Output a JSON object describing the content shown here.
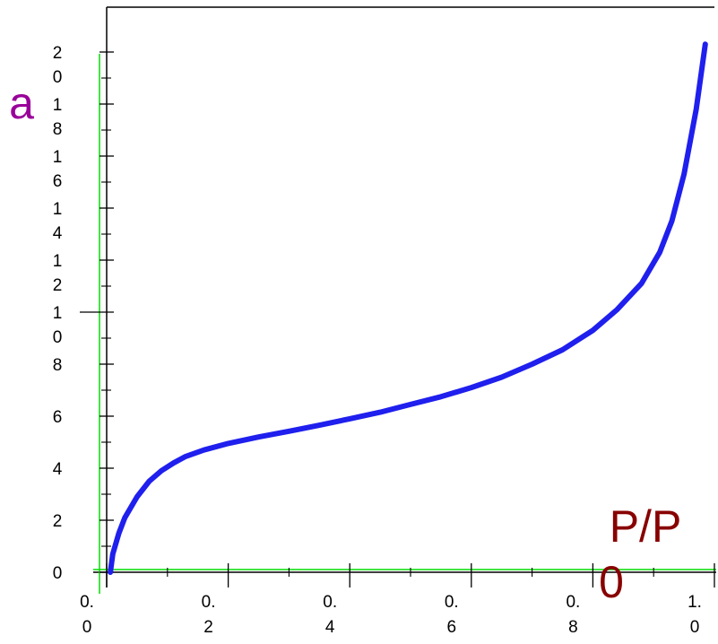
{
  "chart_data": {
    "type": "line",
    "title": "",
    "xlabel_lines": [
      "P/P",
      "0"
    ],
    "ylabel": "a",
    "xlim": [
      0,
      1.0
    ],
    "ylim": [
      0,
      20
    ],
    "x_ticks": [
      {
        "value": 0.0,
        "lines": [
          "0.",
          "0"
        ]
      },
      {
        "value": 0.2,
        "lines": [
          "0.",
          "2"
        ]
      },
      {
        "value": 0.4,
        "lines": [
          "0.",
          "4"
        ]
      },
      {
        "value": 0.6,
        "lines": [
          "0.",
          "6"
        ]
      },
      {
        "value": 0.8,
        "lines": [
          "0.",
          "8"
        ]
      },
      {
        "value": 1.0,
        "lines": [
          "1.",
          "0"
        ]
      }
    ],
    "y_ticks": [
      {
        "value": 0,
        "lines": [
          "0"
        ]
      },
      {
        "value": 2,
        "lines": [
          "2"
        ]
      },
      {
        "value": 4,
        "lines": [
          "4"
        ]
      },
      {
        "value": 6,
        "lines": [
          "6"
        ]
      },
      {
        "value": 8,
        "lines": [
          "8"
        ]
      },
      {
        "value": 10,
        "lines": [
          "1",
          "0"
        ]
      },
      {
        "value": 12,
        "lines": [
          "1",
          "2"
        ]
      },
      {
        "value": 14,
        "lines": [
          "1",
          "4"
        ]
      },
      {
        "value": 16,
        "lines": [
          "1",
          "6"
        ]
      },
      {
        "value": 18,
        "lines": [
          "1",
          "8"
        ]
      },
      {
        "value": 20,
        "lines": [
          "2",
          "0"
        ]
      }
    ],
    "series": [
      {
        "color": "#1f1fee",
        "points": [
          [
            0.006,
            0.0
          ],
          [
            0.01,
            0.7
          ],
          [
            0.02,
            1.5
          ],
          [
            0.03,
            2.1
          ],
          [
            0.05,
            2.9
          ],
          [
            0.07,
            3.5
          ],
          [
            0.09,
            3.9
          ],
          [
            0.11,
            4.2
          ],
          [
            0.13,
            4.45
          ],
          [
            0.16,
            4.7
          ],
          [
            0.2,
            4.95
          ],
          [
            0.25,
            5.2
          ],
          [
            0.3,
            5.42
          ],
          [
            0.35,
            5.65
          ],
          [
            0.4,
            5.9
          ],
          [
            0.45,
            6.15
          ],
          [
            0.5,
            6.45
          ],
          [
            0.55,
            6.75
          ],
          [
            0.6,
            7.1
          ],
          [
            0.65,
            7.5
          ],
          [
            0.7,
            8.0
          ],
          [
            0.75,
            8.55
          ],
          [
            0.8,
            9.3
          ],
          [
            0.84,
            10.1
          ],
          [
            0.88,
            11.1
          ],
          [
            0.91,
            12.3
          ],
          [
            0.93,
            13.5
          ],
          [
            0.95,
            15.3
          ],
          [
            0.97,
            17.8
          ],
          [
            0.985,
            20.3
          ]
        ]
      }
    ],
    "colors": {
      "axis": "#000000",
      "guide": "#00dd00",
      "ylabel": "#990099",
      "xlabel": "#880000"
    }
  }
}
